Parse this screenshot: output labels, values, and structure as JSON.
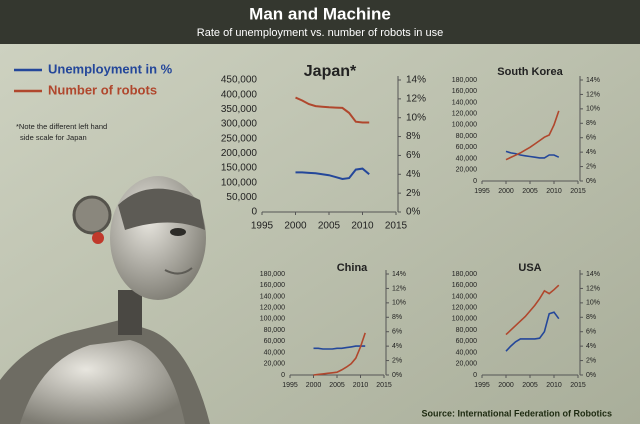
{
  "title": "Man and Machine",
  "subtitle": "Rate of unemployment vs. number of robots in use",
  "legend": [
    {
      "label": "Unemployment in %",
      "color": "#24479a"
    },
    {
      "label": "Number of robots",
      "color": "#b0472d"
    }
  ],
  "note": [
    "*Note the different left hand",
    "side scale for Japan"
  ],
  "source": "Source: International Federation of Robotics",
  "chart_data": [
    {
      "type": "line",
      "title": "Japan*",
      "x": [
        2000,
        2001,
        2002,
        2003,
        2004,
        2005,
        2006,
        2007,
        2008,
        2009,
        2010,
        2011
      ],
      "xlim": [
        1995,
        2015
      ],
      "xticks": [
        1995,
        2000,
        2005,
        2010,
        2015
      ],
      "ylim": [
        0,
        450000
      ],
      "yticks": [
        0,
        {
          "value": 50000,
          "label": "50,000"
        },
        {
          "value": 100000,
          "label": "100,000"
        },
        {
          "value": 150000,
          "label": "150,000"
        },
        {
          "value": 200000,
          "label": "200,000"
        },
        {
          "value": 250000,
          "label": "250,000"
        },
        {
          "value": 300000,
          "label": "300,000"
        },
        {
          "value": 350000,
          "label": "350,000"
        },
        {
          "value": 400000,
          "label": "400,000"
        },
        {
          "value": 450000,
          "label": "450,000"
        }
      ],
      "y2lim": [
        0,
        14
      ],
      "y2ticks": [
        {
          "value": 0,
          "label": "0%"
        },
        {
          "value": 2,
          "label": "2%"
        },
        {
          "value": 4,
          "label": "4%"
        },
        {
          "value": 6,
          "label": "6%"
        },
        {
          "value": 8,
          "label": "8%"
        },
        {
          "value": 10,
          "label": "10%"
        },
        {
          "value": 12,
          "label": "12%"
        },
        {
          "value": 14,
          "label": "14%"
        }
      ],
      "series": [
        {
          "color": "#24479a",
          "axis": "y2",
          "values": [
            4.2,
            4.2,
            4.15,
            4.1,
            4.0,
            3.9,
            3.7,
            3.5,
            3.6,
            4.5,
            4.6,
            4.0
          ]
        },
        {
          "color": "#b0472d",
          "axis": "y",
          "values": [
            390000,
            380000,
            368000,
            361000,
            359000,
            357000,
            356000,
            355000,
            338000,
            308000,
            305000,
            305000
          ]
        }
      ]
    },
    {
      "type": "line",
      "title": "South Korea",
      "x": [
        2000,
        2001,
        2002,
        2003,
        2004,
        2005,
        2006,
        2007,
        2008,
        2009,
        2010,
        2011
      ],
      "xlim": [
        1995,
        2015
      ],
      "xticks": [
        1995,
        2000,
        2005,
        2010,
        2015
      ],
      "ylim": [
        0,
        180000
      ],
      "yticks": [
        0,
        {
          "value": 20000,
          "label": "20,000"
        },
        {
          "value": 40000,
          "label": "40,000"
        },
        {
          "value": 60000,
          "label": "60,000"
        },
        {
          "value": 80000,
          "label": "80,000"
        },
        {
          "value": 100000,
          "label": "100,000"
        },
        {
          "value": 120000,
          "label": "120,000"
        },
        {
          "value": 140000,
          "label": "140,000"
        },
        {
          "value": 160000,
          "label": "160,000"
        },
        {
          "value": 180000,
          "label": "180,000"
        }
      ],
      "y2lim": [
        0,
        14
      ],
      "y2ticks": [
        {
          "value": 0,
          "label": "0%"
        },
        {
          "value": 2,
          "label": "2%"
        },
        {
          "value": 4,
          "label": "4%"
        },
        {
          "value": 6,
          "label": "6%"
        },
        {
          "value": 8,
          "label": "8%"
        },
        {
          "value": 10,
          "label": "10%"
        },
        {
          "value": 12,
          "label": "12%"
        },
        {
          "value": 14,
          "label": "14%"
        }
      ],
      "series": [
        {
          "color": "#24479a",
          "axis": "y2",
          "values": [
            4.1,
            3.9,
            3.8,
            3.6,
            3.5,
            3.4,
            3.3,
            3.2,
            3.2,
            3.6,
            3.6,
            3.3
          ]
        },
        {
          "color": "#b0472d",
          "axis": "y",
          "values": [
            38000,
            42000,
            46000,
            50000,
            55000,
            60000,
            66000,
            72000,
            78000,
            82000,
            100000,
            125000
          ]
        }
      ]
    },
    {
      "type": "line",
      "title": "China",
      "x": [
        2000,
        2001,
        2002,
        2003,
        2004,
        2005,
        2006,
        2007,
        2008,
        2009,
        2010,
        2011
      ],
      "xlim": [
        1995,
        2015
      ],
      "xticks": [
        1995,
        2000,
        2005,
        2010,
        2015
      ],
      "ylim": [
        0,
        180000
      ],
      "yticks": [
        0,
        {
          "value": 20000,
          "label": "20,000"
        },
        {
          "value": 40000,
          "label": "40,000"
        },
        {
          "value": 60000,
          "label": "60,000"
        },
        {
          "value": 80000,
          "label": "80,000"
        },
        {
          "value": 100000,
          "label": "100,000"
        },
        {
          "value": 120000,
          "label": "120,000"
        },
        {
          "value": 140000,
          "label": "140,000"
        },
        {
          "value": 160000,
          "label": "160,000"
        },
        {
          "value": 180000,
          "label": "180,000"
        }
      ],
      "y2lim": [
        0,
        14
      ],
      "y2ticks": [
        {
          "value": 0,
          "label": "0%"
        },
        {
          "value": 2,
          "label": "2%"
        },
        {
          "value": 4,
          "label": "4%"
        },
        {
          "value": 6,
          "label": "6%"
        },
        {
          "value": 8,
          "label": "8%"
        },
        {
          "value": 10,
          "label": "10%"
        },
        {
          "value": 12,
          "label": "12%"
        },
        {
          "value": 14,
          "label": "14%"
        }
      ],
      "series": [
        {
          "color": "#24479a",
          "axis": "y2",
          "values": [
            3.7,
            3.7,
            3.6,
            3.6,
            3.6,
            3.7,
            3.7,
            3.8,
            3.9,
            4.0,
            4.0,
            4.0
          ]
        },
        {
          "color": "#b0472d",
          "axis": "y",
          "values": [
            0,
            1000,
            2000,
            3000,
            4000,
            5000,
            9000,
            14000,
            20000,
            30000,
            50000,
            75000
          ]
        }
      ]
    },
    {
      "type": "line",
      "title": "USA",
      "x": [
        2000,
        2001,
        2002,
        2003,
        2004,
        2005,
        2006,
        2007,
        2008,
        2009,
        2010,
        2011
      ],
      "xlim": [
        1995,
        2015
      ],
      "xticks": [
        1995,
        2000,
        2005,
        2010,
        2015
      ],
      "ylim": [
        0,
        180000
      ],
      "yticks": [
        0,
        {
          "value": 20000,
          "label": "20,000"
        },
        {
          "value": 40000,
          "label": "40,000"
        },
        {
          "value": 60000,
          "label": "60,000"
        },
        {
          "value": 80000,
          "label": "80,000"
        },
        {
          "value": 100000,
          "label": "100,000"
        },
        {
          "value": 120000,
          "label": "120,000"
        },
        {
          "value": 140000,
          "label": "140,000"
        },
        {
          "value": 160000,
          "label": "160,000"
        },
        {
          "value": 180000,
          "label": "180,000"
        }
      ],
      "y2lim": [
        0,
        14
      ],
      "y2ticks": [
        {
          "value": 0,
          "label": "0%"
        },
        {
          "value": 2,
          "label": "2%"
        },
        {
          "value": 4,
          "label": "4%"
        },
        {
          "value": 6,
          "label": "6%"
        },
        {
          "value": 8,
          "label": "8%"
        },
        {
          "value": 10,
          "label": "10%"
        },
        {
          "value": 12,
          "label": "12%"
        },
        {
          "value": 14,
          "label": "14%"
        }
      ],
      "series": [
        {
          "color": "#24479a",
          "axis": "y2",
          "values": [
            3.3,
            4.0,
            4.6,
            5.0,
            5.0,
            5.0,
            5.0,
            5.1,
            6.0,
            8.5,
            8.7,
            7.8
          ]
        },
        {
          "color": "#b0472d",
          "axis": "y",
          "values": [
            72000,
            80000,
            88000,
            96000,
            104000,
            114000,
            124000,
            136000,
            150000,
            145000,
            152000,
            160000
          ]
        }
      ]
    }
  ]
}
